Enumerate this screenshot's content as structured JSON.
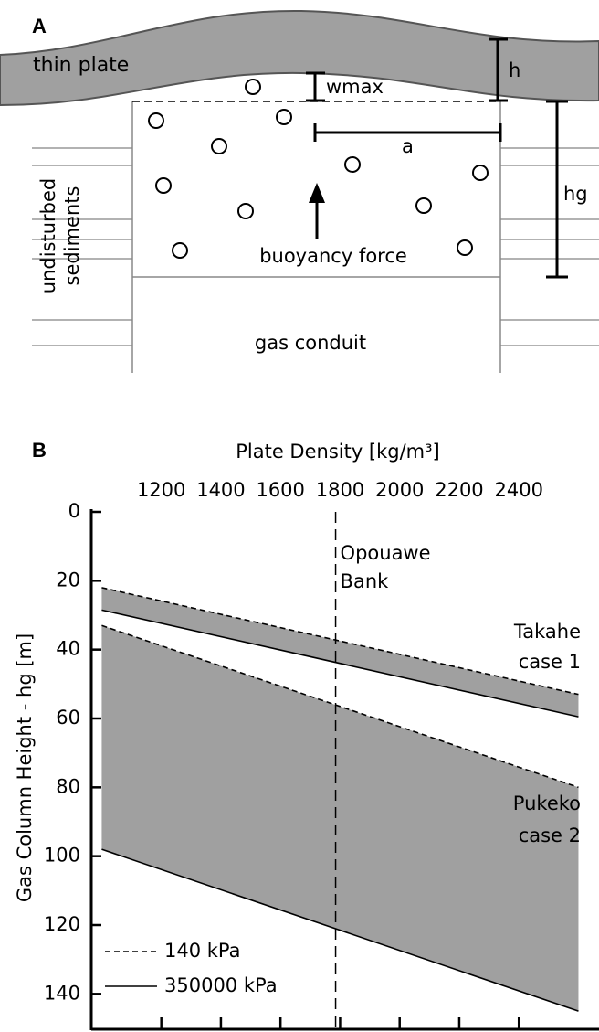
{
  "panel_a": {
    "label": "A",
    "plate": "thin plate",
    "h": "h",
    "wmax": "wmax",
    "a": "a",
    "hg": "hg",
    "sediments": [
      "undisturbed",
      "sediments"
    ],
    "force": "buoyancy force",
    "conduit": "gas conduit"
  },
  "chart_data": {
    "type": "line",
    "panel_label": "B",
    "x_label": "Plate Density [kg/m³]",
    "y_label": "Gas Column Height - hg [m]",
    "x": [
      1000,
      2600
    ],
    "series": [
      {
        "name": "140 kPa",
        "dashed": true,
        "color": "#000000",
        "cases": [
          [
            22,
            53
          ],
          [
            33,
            80
          ]
        ]
      },
      {
        "name": "350000 kPa",
        "dashed": false,
        "color": "#000000",
        "cases": [
          [
            28.5,
            59.5
          ],
          [
            98,
            145
          ]
        ]
      }
    ],
    "case_labels": [
      [
        "Takahe",
        "case 1"
      ],
      [
        "Pukeko",
        "case 2"
      ]
    ],
    "fill": "#a0a0a0",
    "reference_line": {
      "x": 1785,
      "label": [
        "Opouawe",
        "Bank"
      ]
    },
    "xlim": [
      965,
      2620
    ],
    "xticks": [
      1200,
      1400,
      1600,
      1800,
      2000,
      2200,
      2400
    ],
    "ylim": [
      0,
      150
    ],
    "yticks": [
      0,
      20,
      40,
      60,
      80,
      100,
      120,
      140
    ],
    "y_inverted": true
  }
}
